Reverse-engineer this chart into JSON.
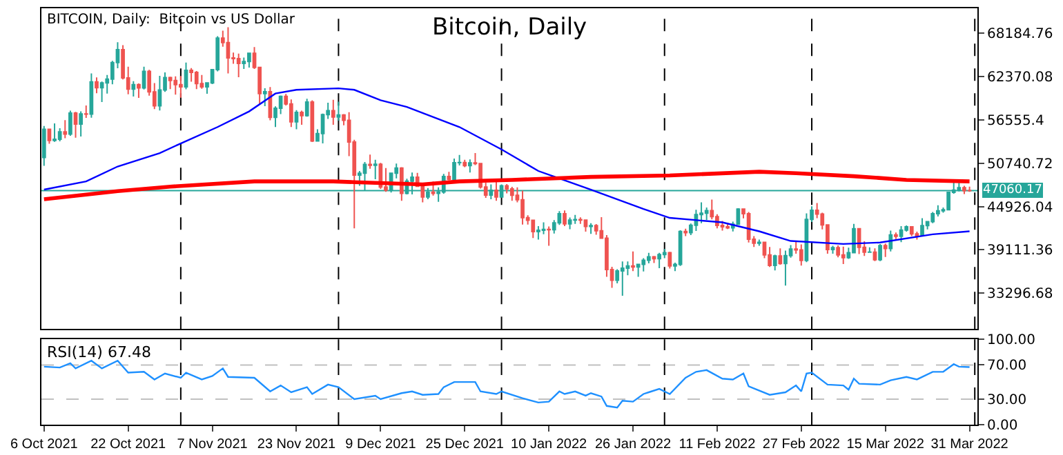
{
  "chart_data": [
    {
      "type": "candlestick",
      "title": "Bitcoin, Daily",
      "annotations": [
        "BITCOIN, Daily:  Bitcoin vs US Dollar"
      ],
      "x": [
        "2021-10-06",
        "2021-10-07",
        "2021-10-08",
        "2021-10-09",
        "2021-10-10",
        "2021-10-11",
        "2021-10-12",
        "2021-10-13",
        "2021-10-14",
        "2021-10-15",
        "2021-10-16",
        "2021-10-17",
        "2021-10-18",
        "2021-10-19",
        "2021-10-20",
        "2021-10-21",
        "2021-10-22",
        "2021-10-23",
        "2021-10-24",
        "2021-10-25",
        "2021-10-26",
        "2021-10-27",
        "2021-10-28",
        "2021-10-29",
        "2021-10-30",
        "2021-10-31",
        "2021-11-01",
        "2021-11-02",
        "2021-11-03",
        "2021-11-04",
        "2021-11-05",
        "2021-11-06",
        "2021-11-07",
        "2021-11-08",
        "2021-11-09",
        "2021-11-10",
        "2021-11-11",
        "2021-11-12",
        "2021-11-13",
        "2021-11-14",
        "2021-11-15",
        "2021-11-16",
        "2021-11-17",
        "2021-11-18",
        "2021-11-19",
        "2021-11-20",
        "2021-11-21",
        "2021-11-22",
        "2021-11-23",
        "2021-11-24",
        "2021-11-25",
        "2021-11-26",
        "2021-11-27",
        "2021-11-28",
        "2021-11-29",
        "2021-11-30",
        "2021-12-01",
        "2021-12-02",
        "2021-12-03",
        "2021-12-04",
        "2021-12-05",
        "2021-12-06",
        "2021-12-07",
        "2021-12-08",
        "2021-12-09",
        "2021-12-10",
        "2021-12-11",
        "2021-12-12",
        "2021-12-13",
        "2021-12-14",
        "2021-12-15",
        "2021-12-16",
        "2021-12-17",
        "2021-12-18",
        "2021-12-19",
        "2021-12-20",
        "2021-12-21",
        "2021-12-22",
        "2021-12-23",
        "2021-12-24",
        "2021-12-25",
        "2021-12-26",
        "2021-12-27",
        "2021-12-28",
        "2021-12-29",
        "2021-12-30",
        "2021-12-31",
        "2022-01-01",
        "2022-01-02",
        "2022-01-03",
        "2022-01-04",
        "2022-01-05",
        "2022-01-06",
        "2022-01-07",
        "2022-01-08",
        "2022-01-09",
        "2022-01-10",
        "2022-01-11",
        "2022-01-12",
        "2022-01-13",
        "2022-01-14",
        "2022-01-15",
        "2022-01-16",
        "2022-01-17",
        "2022-01-18",
        "2022-01-19",
        "2022-01-20",
        "2022-01-21",
        "2022-01-22",
        "2022-01-23",
        "2022-01-24",
        "2022-01-25",
        "2022-01-26",
        "2022-01-27",
        "2022-01-28",
        "2022-01-29",
        "2022-01-30",
        "2022-01-31",
        "2022-02-01",
        "2022-02-02",
        "2022-02-03",
        "2022-02-04",
        "2022-02-05",
        "2022-02-06",
        "2022-02-07",
        "2022-02-08",
        "2022-02-09",
        "2022-02-10",
        "2022-02-11",
        "2022-02-12",
        "2022-02-13",
        "2022-02-14",
        "2022-02-15",
        "2022-02-16",
        "2022-02-17",
        "2022-02-18",
        "2022-02-19",
        "2022-02-20",
        "2022-02-21",
        "2022-02-22",
        "2022-02-23",
        "2022-02-24",
        "2022-02-25",
        "2022-02-26",
        "2022-02-27",
        "2022-02-28",
        "2022-03-01",
        "2022-03-02",
        "2022-03-03",
        "2022-03-04",
        "2022-03-05",
        "2022-03-06",
        "2022-03-07",
        "2022-03-08",
        "2022-03-09",
        "2022-03-10",
        "2022-03-11",
        "2022-03-12",
        "2022-03-13",
        "2022-03-14",
        "2022-03-15",
        "2022-03-16",
        "2022-03-17",
        "2022-03-18",
        "2022-03-19",
        "2022-03-20",
        "2022-03-21",
        "2022-03-22",
        "2022-03-23",
        "2022-03-24",
        "2022-03-25",
        "2022-03-26",
        "2022-03-27",
        "2022-03-28",
        "2022-03-29",
        "2022-03-30",
        "2022-03-31"
      ],
      "ohlc": [
        [
          51500,
          55750,
          50400,
          55300
        ],
        [
          55300,
          55330,
          53360,
          53800
        ],
        [
          53800,
          56100,
          53620,
          53950
        ],
        [
          53950,
          55450,
          53690,
          54950
        ],
        [
          54950,
          56530,
          54110,
          54650
        ],
        [
          54650,
          57800,
          54430,
          57480
        ],
        [
          57480,
          57630,
          54170,
          56000
        ],
        [
          56000,
          57700,
          54330,
          57370
        ],
        [
          57370,
          58500,
          56830,
          57350
        ],
        [
          57350,
          62800,
          56850,
          61670
        ],
        [
          61670,
          62280,
          60150,
          60870
        ],
        [
          60870,
          61720,
          58960,
          61530
        ],
        [
          61530,
          62600,
          60100,
          62040
        ],
        [
          62040,
          64490,
          61350,
          64260
        ],
        [
          64260,
          67000,
          63500,
          65990
        ],
        [
          65990,
          66600,
          62000,
          62210
        ],
        [
          62210,
          63700,
          60000,
          60690
        ],
        [
          60690,
          61750,
          59700,
          61290
        ],
        [
          61290,
          61460,
          59510,
          60860
        ],
        [
          60860,
          63710,
          60650,
          63080
        ],
        [
          63080,
          63290,
          59820,
          60330
        ],
        [
          60330,
          61500,
          58000,
          58450
        ],
        [
          58450,
          62480,
          57820,
          60590
        ],
        [
          60590,
          62930,
          60330,
          62250
        ],
        [
          62250,
          62360,
          60700,
          61860
        ],
        [
          61860,
          62400,
          59950,
          61300
        ],
        [
          61300,
          62450,
          59540,
          61000
        ],
        [
          61000,
          64270,
          60680,
          63230
        ],
        [
          63230,
          63520,
          61700,
          62940
        ],
        [
          62940,
          63120,
          60700,
          61440
        ],
        [
          61440,
          62600,
          60750,
          61000
        ],
        [
          61000,
          61560,
          60070,
          61520
        ],
        [
          61520,
          63300,
          61360,
          63300
        ],
        [
          63300,
          67790,
          63090,
          67550
        ],
        [
          67550,
          68530,
          66380,
          66940
        ],
        [
          66940,
          69000,
          62800,
          64880
        ],
        [
          64880,
          65600,
          64100,
          64780
        ],
        [
          64780,
          65460,
          62300,
          64150
        ],
        [
          64150,
          64920,
          63400,
          64400
        ],
        [
          64400,
          65500,
          63600,
          65500
        ],
        [
          65500,
          66340,
          63400,
          63620
        ],
        [
          63620,
          63620,
          58630,
          60100
        ],
        [
          60100,
          60800,
          58400,
          60360
        ],
        [
          60360,
          60970,
          56500,
          56890
        ],
        [
          56890,
          58370,
          55600,
          58120
        ],
        [
          58120,
          59850,
          57350,
          59730
        ],
        [
          59730,
          60050,
          58500,
          58710
        ],
        [
          58710,
          59300,
          55600,
          56290
        ],
        [
          56290,
          57880,
          55300,
          57570
        ],
        [
          57570,
          57800,
          55900,
          57140
        ],
        [
          57140,
          59400,
          57000,
          58960
        ],
        [
          58960,
          59190,
          53600,
          53730
        ],
        [
          53730,
          55300,
          53660,
          54720
        ],
        [
          54720,
          57400,
          53400,
          57270
        ],
        [
          57270,
          58860,
          56680,
          57800
        ],
        [
          57800,
          59250,
          55900,
          56950
        ],
        [
          56950,
          59000,
          56460,
          57230
        ],
        [
          57230,
          57350,
          55840,
          56510
        ],
        [
          56510,
          57600,
          51700,
          53600
        ],
        [
          53600,
          53900,
          42000,
          49150
        ],
        [
          49150,
          49700,
          47700,
          49400
        ],
        [
          49400,
          50900,
          47100,
          50580
        ],
        [
          50580,
          51900,
          50000,
          50470
        ],
        [
          50470,
          51200,
          48600,
          50600
        ],
        [
          50600,
          50800,
          47300,
          47550
        ],
        [
          47550,
          50100,
          46900,
          47140
        ],
        [
          47140,
          49490,
          46800,
          49390
        ],
        [
          49390,
          50700,
          48700,
          50100
        ],
        [
          50100,
          50200,
          45700,
          46700
        ],
        [
          46700,
          48650,
          46550,
          48340
        ],
        [
          48340,
          49500,
          46550,
          48880
        ],
        [
          48880,
          49450,
          47550,
          47640
        ],
        [
          47640,
          48000,
          45500,
          46200
        ],
        [
          46200,
          47400,
          45900,
          46850
        ],
        [
          46850,
          48300,
          46400,
          46700
        ],
        [
          46700,
          47500,
          45550,
          46880
        ],
        [
          46880,
          49300,
          46650,
          48950
        ],
        [
          48950,
          49580,
          48450,
          48600
        ],
        [
          48600,
          51380,
          48050,
          50820
        ],
        [
          50820,
          51850,
          50450,
          50830
        ],
        [
          50830,
          51200,
          50200,
          50430
        ],
        [
          50430,
          51250,
          49500,
          50800
        ],
        [
          50800,
          52100,
          50500,
          50700
        ],
        [
          50700,
          50700,
          47340,
          47540
        ],
        [
          47540,
          48120,
          46100,
          46460
        ],
        [
          46460,
          47900,
          45900,
          47120
        ],
        [
          47120,
          48550,
          45700,
          46210
        ],
        [
          46210,
          47900,
          46200,
          47720
        ],
        [
          47720,
          47950,
          46700,
          47290
        ],
        [
          47290,
          47570,
          45700,
          46440
        ],
        [
          46440,
          47500,
          45500,
          45830
        ],
        [
          45830,
          47070,
          42500,
          43430
        ],
        [
          43430,
          43750,
          42500,
          43080
        ],
        [
          43080,
          43140,
          40700,
          41550
        ],
        [
          41550,
          42300,
          40500,
          41730
        ],
        [
          41730,
          42800,
          41200,
          41860
        ],
        [
          41860,
          42250,
          39650,
          41820
        ],
        [
          41820,
          43100,
          41300,
          42740
        ],
        [
          42740,
          44300,
          42450,
          43950
        ],
        [
          43950,
          44400,
          42300,
          42590
        ],
        [
          42590,
          43450,
          41870,
          43100
        ],
        [
          43100,
          43800,
          42600,
          43180
        ],
        [
          43180,
          43480,
          42600,
          43110
        ],
        [
          43110,
          43180,
          41550,
          42250
        ],
        [
          42250,
          42700,
          41250,
          42370
        ],
        [
          42370,
          42580,
          41150,
          41680
        ],
        [
          41680,
          43500,
          40600,
          40680
        ],
        [
          40680,
          41100,
          35500,
          36460
        ],
        [
          36460,
          36830,
          34000,
          35030
        ],
        [
          35030,
          36500,
          34600,
          36280
        ],
        [
          36280,
          37550,
          32950,
          36650
        ],
        [
          36650,
          37550,
          35700,
          36950
        ],
        [
          36950,
          38900,
          36250,
          36810
        ],
        [
          36810,
          37220,
          35500,
          37160
        ],
        [
          37160,
          38000,
          36200,
          37720
        ],
        [
          37720,
          38700,
          37300,
          38170
        ],
        [
          38170,
          38300,
          37350,
          37920
        ],
        [
          37920,
          38700,
          36650,
          38480
        ],
        [
          38480,
          39250,
          38000,
          38740
        ],
        [
          38740,
          38850,
          36600,
          36950
        ],
        [
          36950,
          37400,
          36250,
          37150
        ],
        [
          37150,
          41750,
          36950,
          41570
        ],
        [
          41570,
          41950,
          40950,
          41410
        ],
        [
          41410,
          42650,
          41100,
          42410
        ],
        [
          42410,
          44500,
          41650,
          43840
        ],
        [
          43840,
          45500,
          42700,
          44040
        ],
        [
          44040,
          44800,
          43130,
          44370
        ],
        [
          44370,
          45850,
          43200,
          43560
        ],
        [
          43560,
          43900,
          42000,
          42400
        ],
        [
          42400,
          43000,
          41700,
          42200
        ],
        [
          42200,
          42750,
          41900,
          42070
        ],
        [
          42070,
          42900,
          41570,
          42550
        ],
        [
          42550,
          44700,
          42450,
          44580
        ],
        [
          44580,
          44580,
          43330,
          43960
        ],
        [
          43960,
          44200,
          40100,
          40540
        ],
        [
          40540,
          40950,
          39500,
          40000
        ],
        [
          40000,
          40500,
          39650,
          40120
        ],
        [
          40120,
          40150,
          38000,
          38430
        ],
        [
          38430,
          39500,
          36800,
          37020
        ],
        [
          37020,
          38450,
          36350,
          38290
        ],
        [
          38290,
          39300,
          37100,
          37280
        ],
        [
          37280,
          39000,
          34320,
          38330
        ],
        [
          38330,
          39750,
          38050,
          39210
        ],
        [
          39210,
          40300,
          38600,
          39110
        ],
        [
          39110,
          39850,
          37000,
          37700
        ],
        [
          37700,
          44000,
          37450,
          43190
        ],
        [
          43190,
          44950,
          42850,
          44420
        ],
        [
          44420,
          45400,
          43350,
          43920
        ],
        [
          43920,
          44100,
          41850,
          42450
        ],
        [
          42450,
          42550,
          38600,
          39140
        ],
        [
          39140,
          39650,
          38600,
          39400
        ],
        [
          39400,
          39700,
          38100,
          38420
        ],
        [
          38420,
          39550,
          37200,
          38060
        ],
        [
          38060,
          39400,
          37900,
          38740
        ],
        [
          38740,
          42600,
          38650,
          41940
        ],
        [
          41940,
          42050,
          38550,
          39440
        ],
        [
          39440,
          40250,
          38300,
          38790
        ],
        [
          38790,
          39450,
          38700,
          38810
        ],
        [
          38810,
          39300,
          37600,
          37780
        ],
        [
          37780,
          39900,
          37600,
          39670
        ],
        [
          39670,
          39950,
          38150,
          39280
        ],
        [
          39280,
          41700,
          38900,
          41110
        ],
        [
          41110,
          41450,
          40550,
          40920
        ],
        [
          40920,
          42300,
          40150,
          41770
        ],
        [
          41770,
          42400,
          41550,
          42200
        ],
        [
          42200,
          42300,
          40950,
          41260
        ],
        [
          41260,
          41550,
          40500,
          41000
        ],
        [
          41000,
          43350,
          40900,
          42360
        ],
        [
          42360,
          43000,
          41850,
          42890
        ],
        [
          42890,
          44200,
          42700,
          43960
        ],
        [
          43960,
          45100,
          43600,
          44350
        ],
        [
          44350,
          44800,
          44100,
          44500
        ],
        [
          44500,
          46900,
          44450,
          46820
        ],
        [
          46820,
          48200,
          46650,
          47130
        ],
        [
          47130,
          48100,
          46950,
          47460
        ],
        [
          47460,
          47700,
          46600,
          47070
        ],
        [
          47070,
          47600,
          46900,
          47060.17
        ]
      ],
      "series": [
        {
          "type": "line",
          "color": "#0000ff",
          "x": [
            "2021-10-06",
            "2021-10-14",
            "2021-10-20",
            "2021-10-28",
            "2021-11-01",
            "2021-11-08",
            "2021-11-14",
            "2021-11-19",
            "2021-11-23",
            "2021-12-01",
            "2021-12-04",
            "2021-12-09",
            "2021-12-14",
            "2021-12-24",
            "2022-01-01",
            "2022-01-08",
            "2022-01-18",
            "2022-01-28",
            "2022-02-02",
            "2022-02-12",
            "2022-02-19",
            "2022-02-25",
            "2022-03-07",
            "2022-03-14",
            "2022-03-24",
            "2022-03-31"
          ],
          "values": [
            47200,
            48300,
            50300,
            52100,
            53400,
            55600,
            57700,
            60100,
            60600,
            60800,
            60600,
            59200,
            58300,
            55600,
            52600,
            49700,
            47200,
            44600,
            43400,
            42800,
            41600,
            40300,
            39900,
            40100,
            41200,
            41600
          ]
        },
        {
          "type": "line",
          "color": "#ff0000",
          "x": [
            "2021-10-06",
            "2021-10-20",
            "2021-10-30",
            "2021-11-15",
            "2021-11-30",
            "2021-12-04",
            "2021-12-17",
            "2021-12-24",
            "2022-01-03",
            "2022-01-18",
            "2022-02-02",
            "2022-02-19",
            "2022-02-26",
            "2022-03-09",
            "2022-03-19",
            "2022-03-31"
          ],
          "values": [
            45900,
            47000,
            47600,
            48300,
            48300,
            48200,
            47900,
            48300,
            48500,
            48900,
            49100,
            49600,
            49400,
            49000,
            48500,
            48300
          ]
        }
      ],
      "xlim": [
        "2021-10-05T12:00",
        "2022-04-01T12:00"
      ],
      "ylim": [
        28480,
        71550
      ],
      "yticks": [
        68184.76,
        62370.08,
        56555.4,
        50740.72,
        44926.04,
        39111.36,
        33296.68
      ],
      "ref_lines": [
        {
          "axis": "y",
          "value": 47060.17,
          "label": "47060.17",
          "color": "#26a69a"
        },
        {
          "axis": "x",
          "value": "2021-11-01",
          "label": null,
          "line_style": "dashed"
        },
        {
          "axis": "x",
          "value": "2021-12-01",
          "label": null,
          "line_style": "dashed"
        },
        {
          "axis": "x",
          "value": "2022-01-01",
          "label": null,
          "line_style": "dashed"
        },
        {
          "axis": "x",
          "value": "2022-02-01",
          "label": null,
          "line_style": "dashed"
        },
        {
          "axis": "x",
          "value": "2022-03-01",
          "label": null,
          "line_style": "dashed"
        },
        {
          "axis": "x",
          "value": "2022-04-01",
          "label": null,
          "line_style": "dashed"
        }
      ],
      "tick_labels": "y"
    },
    {
      "type": "line",
      "title": "RSI(14) 67.48",
      "series": [
        {
          "color": "#1e90ff",
          "x": [
            "2021-10-06",
            "2021-10-09",
            "2021-10-11",
            "2021-10-12",
            "2021-10-15",
            "2021-10-17",
            "2021-10-20",
            "2021-10-22",
            "2021-10-25",
            "2021-10-27",
            "2021-10-29",
            "2021-11-01",
            "2021-11-02",
            "2021-11-05",
            "2021-11-07",
            "2021-11-09",
            "2021-11-10",
            "2021-11-15",
            "2021-11-18",
            "2021-11-20",
            "2021-11-22",
            "2021-11-25",
            "2021-11-26",
            "2021-11-29",
            "2021-12-01",
            "2021-12-04",
            "2021-12-08",
            "2021-12-09",
            "2021-12-13",
            "2021-12-15",
            "2021-12-17",
            "2021-12-20",
            "2021-12-21",
            "2021-12-23",
            "2021-12-27",
            "2021-12-28",
            "2021-12-31",
            "2022-01-01",
            "2022-01-05",
            "2022-01-08",
            "2022-01-10",
            "2022-01-12",
            "2022-01-13",
            "2022-01-15",
            "2022-01-17",
            "2022-01-18",
            "2022-01-20",
            "2022-01-21",
            "2022-01-23",
            "2022-01-24",
            "2022-01-26",
            "2022-01-28",
            "2022-01-29",
            "2022-01-31",
            "2022-02-02",
            "2022-02-05",
            "2022-02-07",
            "2022-02-09",
            "2022-02-12",
            "2022-02-14",
            "2022-02-16",
            "2022-02-17",
            "2022-02-21",
            "2022-02-24",
            "2022-02-26",
            "2022-02-27",
            "2022-02-28",
            "2022-03-01",
            "2022-03-04",
            "2022-03-07",
            "2022-03-08",
            "2022-03-09",
            "2022-03-10",
            "2022-03-14",
            "2022-03-16",
            "2022-03-19",
            "2022-03-21",
            "2022-03-24",
            "2022-03-26",
            "2022-03-28",
            "2022-03-29",
            "2022-03-31"
          ],
          "values": [
            68,
            67,
            72,
            66,
            75,
            66,
            75,
            61,
            62,
            53,
            60,
            55,
            61,
            53,
            57,
            66,
            56,
            55,
            39,
            46,
            38,
            44,
            36,
            47,
            44,
            30,
            34,
            30,
            37,
            39,
            35,
            36,
            44,
            50,
            50,
            39,
            36,
            39,
            31,
            26,
            27,
            39,
            36,
            39,
            34,
            37,
            33,
            22,
            20,
            28,
            27,
            36,
            38,
            42,
            36,
            55,
            62,
            64,
            54,
            53,
            60,
            45,
            35,
            38,
            46,
            39,
            60,
            61,
            47,
            46,
            41,
            54,
            48,
            47,
            52,
            56,
            53,
            62,
            62,
            71,
            68,
            67.48
          ]
        }
      ],
      "xlim": [
        "2021-10-05T12:00",
        "2022-04-01T12:00"
      ],
      "xticks": [
        {
          "value": "2021-10-06",
          "label": "6 Oct 2021"
        },
        {
          "value": "2021-10-22",
          "label": "22 Oct 2021"
        },
        {
          "value": "2021-11-07",
          "label": "7 Nov 2021"
        },
        {
          "value": "2021-11-23",
          "label": "23 Nov 2021"
        },
        {
          "value": "2021-12-09",
          "label": "9 Dec 2021"
        },
        {
          "value": "2021-12-25",
          "label": "25 Dec 2021"
        },
        {
          "value": "2022-01-10",
          "label": "10 Jan 2022"
        },
        {
          "value": "2022-01-26",
          "label": "26 Jan 2022"
        },
        {
          "value": "2022-02-11",
          "label": "11 Feb 2022"
        },
        {
          "value": "2022-02-27",
          "label": "27 Feb 2022"
        },
        {
          "value": "2022-03-15",
          "label": "15 Mar 2022"
        },
        {
          "value": "2022-03-31",
          "label": "31 Mar 2022"
        }
      ],
      "ylim": [
        0,
        100
      ],
      "yticks": [
        {
          "value": 100,
          "label": "100.00"
        },
        {
          "value": 70,
          "label": "70.00"
        },
        {
          "value": 30,
          "label": "30.00"
        },
        {
          "value": 0,
          "label": "0.00"
        }
      ],
      "ref_lines": [
        {
          "axis": "y",
          "value": 70,
          "label": null,
          "color": "#c0c0c0",
          "line_style": "dashed"
        },
        {
          "axis": "y",
          "value": 30,
          "label": null,
          "color": "#c0c0c0",
          "line_style": "dashed"
        },
        {
          "axis": "x",
          "value": "2021-11-01",
          "label": null,
          "line_style": "dashed"
        },
        {
          "axis": "x",
          "value": "2021-12-01",
          "label": null,
          "line_style": "dashed"
        },
        {
          "axis": "x",
          "value": "2022-01-01",
          "label": null,
          "line_style": "dashed"
        },
        {
          "axis": "x",
          "value": "2022-02-01",
          "label": null,
          "line_style": "dashed"
        },
        {
          "axis": "x",
          "value": "2022-03-01",
          "label": null,
          "line_style": "dashed"
        },
        {
          "axis": "x",
          "value": "2022-04-01",
          "label": null,
          "line_style": "dashed"
        }
      ]
    }
  ]
}
